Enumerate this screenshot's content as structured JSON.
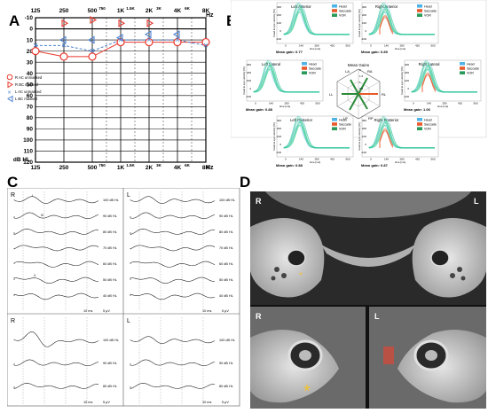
{
  "panels": {
    "a": "A",
    "b": "B",
    "c": "C",
    "d": "D"
  },
  "audiogram": {
    "freq_labels_top": [
      "125",
      "250",
      "500",
      "1K",
      "2K",
      "4K",
      "8K"
    ],
    "freq_labels_half": [
      "750",
      "1.5K",
      "3K",
      "6K"
    ],
    "freq_unit": "Hz",
    "y_ticks": [
      "-10",
      "0",
      "10",
      "20",
      "30",
      "40",
      "50",
      "60",
      "70",
      "80",
      "90",
      "100",
      "110",
      "120"
    ],
    "y_unit": "dB HL",
    "legend": [
      "R AC unmasked",
      "R BC masked",
      "L AC unmasked",
      "L BC masked"
    ],
    "colors": {
      "right": "#e8392f",
      "left": "#4a7fd0"
    }
  },
  "chart_data": {
    "type": "line",
    "x": [
      "125",
      "250",
      "500",
      "1K",
      "2K",
      "4K",
      "8K"
    ],
    "ylim": [
      -10,
      120
    ],
    "series": [
      {
        "name": "R AC unmasked",
        "values": [
          20,
          25,
          25,
          12,
          12,
          12,
          12
        ]
      },
      {
        "name": "L AC unmasked",
        "values": [
          15,
          15,
          20,
          10,
          10,
          10,
          15
        ]
      },
      {
        "name": "R BC masked",
        "values": [
          null,
          -5,
          -8,
          -5,
          -5,
          null,
          null
        ]
      },
      {
        "name": "L BC masked",
        "values": [
          null,
          10,
          10,
          8,
          5,
          5,
          null
        ]
      }
    ]
  },
  "vhit": {
    "left_anterior": {
      "title": "Left Anterior",
      "gain": "Mean gain: 0.77"
    },
    "right_anterior": {
      "title": "Right Anterior",
      "gain": "Mean gain: 0.89"
    },
    "left_lateral": {
      "title": "Left Lateral",
      "gain": "Mean gain: 0.88"
    },
    "right_lateral": {
      "title": "Right Lateral",
      "gain": "Mean gain: 1.06"
    },
    "left_posterior": {
      "title": "Left Posterior",
      "gain": "Mean gain: 0.88"
    },
    "right_posterior": {
      "title": "Right Posterior",
      "gain": "Mean gain: 0.87"
    },
    "legend": [
      "Head",
      "Saccade",
      "VOR"
    ],
    "ylabel": "head & eye velocity [%]",
    "xlabel": "time [ms]",
    "y_ticks": [
      "300",
      "200",
      "100",
      "0",
      "-100"
    ],
    "x_ticks": [
      "0",
      "140",
      "280",
      "420",
      "560"
    ],
    "center_title": "Mean Gains",
    "center_labels": {
      "la": "LA",
      "ra": "RA",
      "ll": "LL",
      "rl": "RL",
      "lp": "LP",
      "rp": "RP"
    },
    "center_ticks": [
      "0.5",
      "1",
      "1.5",
      "2"
    ]
  },
  "abr": {
    "right_label": "R",
    "left_label": "L",
    "levels_top": [
      "100 dB HL",
      "90 dB HL",
      "80 dB HL",
      "70 dB HL",
      "60 dB HL",
      "50 dB HL",
      "40 dB HL"
    ],
    "levels_bottom": [
      "100 dB HL",
      "90 dB HL",
      "80 dB HL"
    ],
    "scale": "10 ms",
    "scale_v": "5 µV",
    "wave_marks": [
      "I",
      "III",
      "V"
    ]
  },
  "ct": {
    "r": "R",
    "l": "L",
    "marker": "*"
  }
}
